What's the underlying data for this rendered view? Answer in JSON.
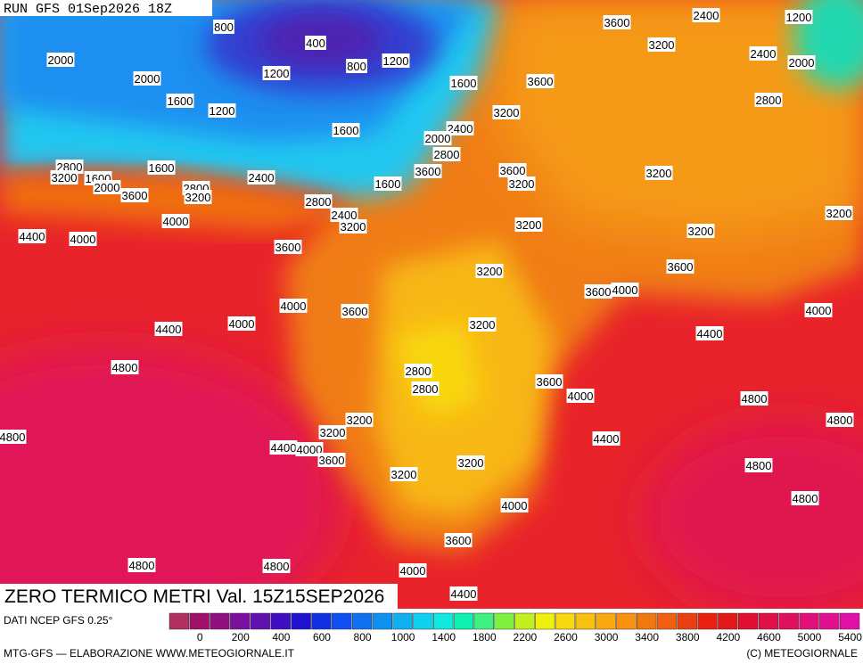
{
  "header": {
    "run": "RUN GFS 01Sep2026 18Z"
  },
  "title": "ZERO TERMICO METRI Val. 15Z15SEP2026",
  "legend": {
    "source": "DATI NCEP GFS 0.25°",
    "colors": [
      "#b03060",
      "#a0106a",
      "#901080",
      "#7a10a0",
      "#6010b0",
      "#4010c0",
      "#2010d0",
      "#1030e0",
      "#1050f0",
      "#1070f0",
      "#1090f0",
      "#10b0f0",
      "#10d0f0",
      "#10e8e0",
      "#10f0b0",
      "#40f080",
      "#80f040",
      "#c0f020",
      "#f0f010",
      "#f8d810",
      "#f8c010",
      "#f8a810",
      "#f89010",
      "#f07810",
      "#f06010",
      "#e84010",
      "#e82010",
      "#e01818",
      "#e01030",
      "#e01048",
      "#e01060",
      "#e01078",
      "#e01090",
      "#e010a8"
    ],
    "labels": [
      0,
      200,
      400,
      600,
      800,
      1000,
      1400,
      1800,
      2200,
      2600,
      3000,
      3400,
      3800,
      4200,
      4600,
      5000,
      5400
    ]
  },
  "footer": {
    "left": "MTG-GFS — ELABORAZIONE WWW.METEOGIORNALE.IT",
    "right": "(C) METEOGIORNALE"
  },
  "contour_labels": [
    800,
    400,
    800,
    1200,
    1200,
    2000,
    2000,
    1600,
    1200,
    1600,
    3600,
    3600,
    2400,
    3200,
    2400,
    2000,
    1200,
    2800,
    3200,
    2400,
    1600,
    2000,
    2800,
    2800,
    1600,
    3200,
    1600,
    2000,
    3600,
    3600,
    3200,
    3200,
    2400,
    1600,
    2800,
    3600,
    3200,
    2800,
    2400,
    3200,
    4000,
    3200,
    3200,
    3200,
    4400,
    4000,
    3600,
    3200,
    3600,
    3600,
    4000,
    4000,
    3600,
    4000,
    4000,
    4400,
    3200,
    4400,
    4800,
    2800,
    2800,
    3600,
    4000,
    4800,
    4800,
    3200,
    3200,
    4800,
    4400,
    4000,
    4400,
    3600,
    3200,
    4800,
    3200,
    4800,
    4000,
    3600,
    4800,
    4800,
    4000,
    4400
  ]
}
